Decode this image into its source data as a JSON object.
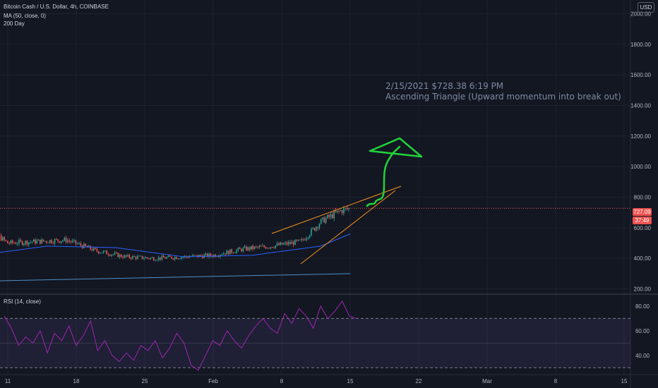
{
  "legend": {
    "symbol": "Bitcoin Cash / U.S. Dollar, 4h, COINBASE",
    "ma": "MA (50, close, 0)",
    "ma200": "200 Day",
    "rsi": "RSI (14, close)"
  },
  "currency_button": "USD",
  "annotation": {
    "line1": "2/15/2021 $728.38 6:19 PM",
    "line2": "Ascending Triangle (Upward momentum into break out)"
  },
  "price_tags": {
    "last_price": "727.09",
    "countdown": "37:49"
  },
  "colors": {
    "background": "#131722",
    "up": "#26a69a",
    "down": "#ef5350",
    "ma50": "#2962ff",
    "ma200": "#4e8fc4",
    "trendline": "#f7931a",
    "arrow": "#22d33a",
    "rsi": "#9c27b0"
  },
  "chart_data": [
    {
      "type": "candlestick",
      "title": "Bitcoin Cash / U.S. Dollar, 4h, COINBASE",
      "y_axis_ticks": [
        200,
        400,
        600,
        800,
        1000,
        1200,
        1400,
        1600,
        1800,
        2000
      ],
      "y_axis_labels": [
        "200.00",
        "400.00",
        "600.00",
        "800.00",
        "1000.00",
        "1200.00",
        "1400.00",
        "1600.00",
        "1800.00",
        "2000.00"
      ],
      "ylim": [
        170,
        2090
      ],
      "x_axis_labels": [
        "11",
        "18",
        "25",
        "Feb",
        "8",
        "15",
        "22",
        "Mar",
        "8",
        "15"
      ],
      "last_price": 727.09,
      "close_series": {
        "x": [
          "Jan 8",
          "Jan 11",
          "Jan 14",
          "Jan 17",
          "Jan 20",
          "Jan 23",
          "Jan 26",
          "Jan 29",
          "Feb 1",
          "Feb 4",
          "Feb 7",
          "Feb 10",
          "Feb 12",
          "Feb 14",
          "Feb 15"
        ],
        "close": [
          640,
          500,
          510,
          520,
          450,
          410,
          400,
          410,
          420,
          460,
          480,
          510,
          640,
          710,
          727
        ]
      },
      "ma50_series": {
        "x": [
          "Jan 8",
          "Jan 15",
          "Jan 22",
          "Jan 29",
          "Feb 5",
          "Feb 12",
          "Feb 15"
        ],
        "values": [
          420,
          480,
          470,
          410,
          420,
          480,
          560
        ]
      },
      "ma200_series": {
        "x": [
          "Jan 8",
          "Feb 15"
        ],
        "values": [
          250,
          300
        ]
      }
    },
    {
      "type": "line",
      "title": "RSI (14, close)",
      "y_axis_labels": [
        "40.00",
        "60.00",
        "80.00"
      ],
      "ylim": [
        25,
        88
      ],
      "bands": [
        30,
        70
      ],
      "values": [
        72,
        62,
        48,
        55,
        50,
        60,
        42,
        58,
        52,
        64,
        48,
        56,
        68,
        44,
        52,
        40,
        35,
        42,
        36,
        48,
        44,
        52,
        38,
        46,
        58,
        50,
        32,
        28,
        40,
        52,
        48,
        60,
        52,
        46,
        56,
        64,
        70,
        62,
        58,
        74,
        66,
        78,
        72,
        62,
        80,
        70,
        76,
        84,
        72,
        70
      ]
    }
  ]
}
